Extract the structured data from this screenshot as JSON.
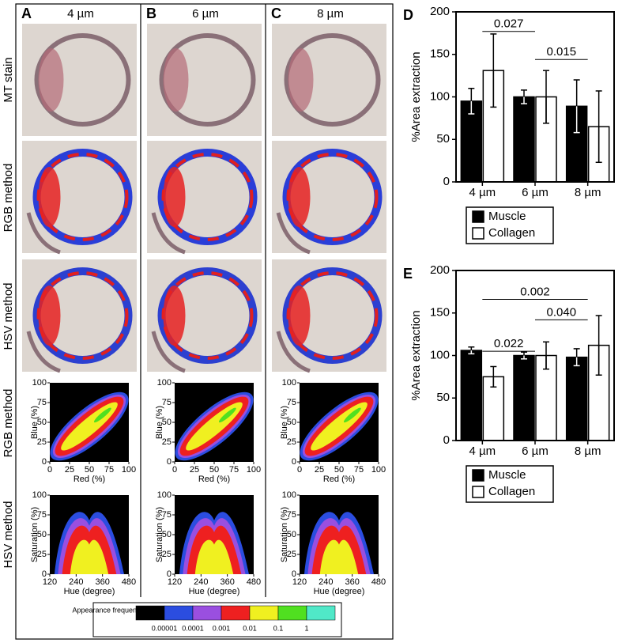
{
  "columns": [
    {
      "letter": "A",
      "label": "4 µm"
    },
    {
      "letter": "B",
      "label": "6 µm"
    },
    {
      "letter": "C",
      "label": "8 µm"
    }
  ],
  "rows": [
    "MT stain",
    "RGB method",
    "HSV method",
    "RGB method",
    "HSV method"
  ],
  "rgb_plot": {
    "xlabel": "Red (%)",
    "ylabel": "Blue (%)",
    "xlim": [
      0,
      100
    ],
    "ylim": [
      0,
      100
    ],
    "xticks": [
      0,
      25,
      50,
      75,
      100
    ],
    "yticks": [
      0,
      25,
      50,
      75,
      100
    ]
  },
  "hsv_plot": {
    "xlabel": "Hue (degree)",
    "ylabel": "Saturation (%)",
    "xlim": [
      120,
      480
    ],
    "ylim": [
      0,
      100
    ],
    "xticks": [
      120,
      240,
      360,
      480
    ],
    "yticks": [
      0,
      25,
      50,
      75,
      100
    ]
  },
  "colorbar": {
    "title": "Appearance frequency (%)",
    "colors": [
      "#000000",
      "#2b4de0",
      "#9a4fe0",
      "#ee2020",
      "#f0f020",
      "#50e020",
      "#50e8c8"
    ],
    "labels": [
      "0.00001",
      "0.0001",
      "0.001",
      "0.01",
      "0.1",
      "1"
    ]
  },
  "chart_data": [
    {
      "type": "bar",
      "label": "D",
      "ylabel": "%Area extraction",
      "categories": [
        "4 µm",
        "6 µm",
        "8 µm"
      ],
      "ylim": [
        0,
        200
      ],
      "yticks": [
        0,
        50,
        100,
        150,
        200
      ],
      "series": [
        {
          "name": "Muscle",
          "color": "#000000",
          "values": [
            95,
            100,
            89
          ],
          "errors": [
            15,
            8,
            31
          ]
        },
        {
          "name": "Collagen",
          "color": "#ffffff",
          "values": [
            131,
            100,
            65
          ],
          "errors": [
            43,
            31,
            42
          ]
        }
      ],
      "annotations": [
        {
          "text": "0.027",
          "y": 177,
          "between": [
            "4 µm",
            "6 µm"
          ]
        },
        {
          "text": "0.015",
          "y": 144,
          "between": [
            "6 µm",
            "8 µm"
          ]
        }
      ]
    },
    {
      "type": "bar",
      "label": "E",
      "ylabel": "%Area extraction",
      "categories": [
        "4 µm",
        "6 µm",
        "8 µm"
      ],
      "ylim": [
        0,
        200
      ],
      "yticks": [
        0,
        50,
        100,
        150,
        200
      ],
      "series": [
        {
          "name": "Muscle",
          "color": "#000000",
          "values": [
            106,
            100,
            98
          ],
          "errors": [
            4,
            4,
            10
          ]
        },
        {
          "name": "Collagen",
          "color": "#ffffff",
          "values": [
            75,
            100,
            112
          ],
          "errors": [
            12,
            16,
            35
          ]
        }
      ],
      "annotations": [
        {
          "text": "0.002",
          "y": 166,
          "between": [
            "4 µm",
            "8 µm"
          ]
        },
        {
          "text": "0.040",
          "y": 142,
          "between": [
            "6 µm",
            "8 µm"
          ]
        },
        {
          "text": "0.022",
          "y": 105,
          "between": [
            "4 µm",
            "6 µm"
          ]
        }
      ]
    }
  ]
}
